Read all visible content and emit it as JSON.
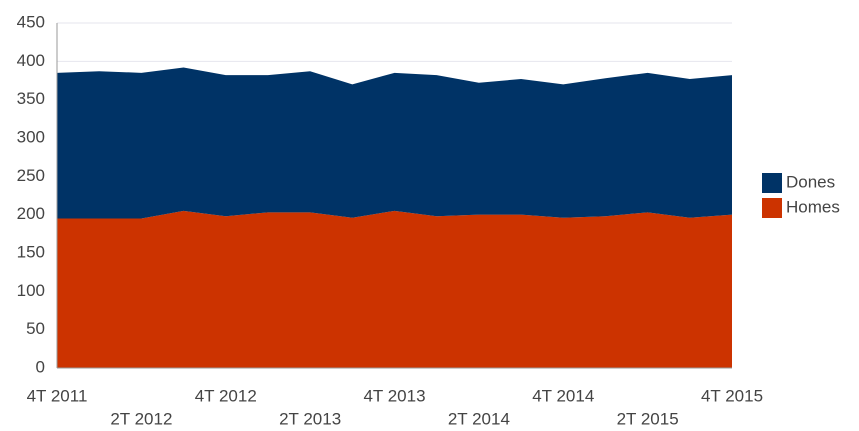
{
  "chart_data": {
    "type": "stacked_area",
    "categories": [
      "4T 2011",
      null,
      "2T 2012",
      null,
      "4T 2012",
      null,
      "2T 2013",
      null,
      "4T 2013",
      null,
      "2T 2014",
      null,
      "4T 2014",
      null,
      "2T 2015",
      null,
      "4T 2015"
    ],
    "series": [
      {
        "name": "Homes",
        "color": "#cc3300",
        "values": [
          195,
          195,
          195,
          205,
          198,
          203,
          203,
          196,
          205,
          198,
          200,
          200,
          196,
          198,
          203,
          196,
          200
        ]
      },
      {
        "name": "Dones",
        "color": "#003366",
        "values": [
          190,
          192,
          190,
          187,
          184,
          179,
          184,
          174,
          180,
          184,
          172,
          177,
          174,
          180,
          182,
          181,
          182
        ]
      }
    ],
    "ylim": [
      0,
      450
    ],
    "yticks": [
      0,
      50,
      100,
      150,
      200,
      250,
      300,
      350,
      400,
      450
    ],
    "grid": true,
    "legend": "right"
  }
}
